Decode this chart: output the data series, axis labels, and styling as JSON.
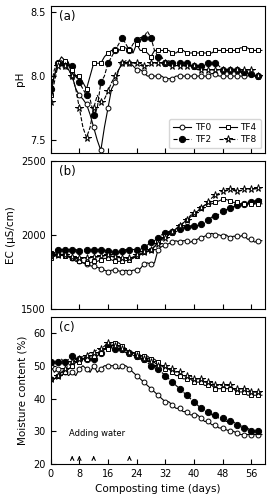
{
  "title_a": "(a)",
  "title_b": "(b)",
  "title_c": "(c)",
  "ylabel_a": "pH",
  "ylabel_b": "EC (μS/cm)",
  "ylabel_c": "Moisture content (%)",
  "xlabel": "Composting time (days)",
  "ylim_a": [
    7.4,
    8.55
  ],
  "ylim_b": [
    1500,
    2500
  ],
  "ylim_c": [
    20,
    65
  ],
  "yticks_a": [
    7.5,
    8.0,
    8.5
  ],
  "yticks_b": [
    1500,
    2000,
    2500
  ],
  "yticks_c": [
    20,
    30,
    40,
    50,
    60
  ],
  "xticks": [
    0,
    8,
    16,
    24,
    32,
    40,
    48,
    56
  ],
  "xlim": [
    0,
    60
  ],
  "water_arrows": [
    6,
    8,
    12,
    22
  ],
  "line_color": "#000000",
  "TF0_ph_x": [
    0,
    1,
    2,
    3,
    4,
    5,
    6,
    7,
    8,
    9,
    10,
    11,
    12,
    13,
    14,
    15,
    16,
    17,
    18,
    19,
    20,
    21,
    22,
    23,
    24,
    25,
    26,
    27,
    28,
    29,
    30,
    31,
    32,
    33,
    34,
    35,
    36,
    37,
    38,
    39,
    40,
    41,
    42,
    43,
    44,
    45,
    46,
    47,
    48,
    49,
    50,
    51,
    52,
    53,
    54,
    55,
    56,
    57,
    58,
    59
  ],
  "TF0_ph": [
    7.9,
    8.0,
    8.1,
    8.1,
    8.08,
    8.05,
    8.0,
    7.9,
    7.85,
    7.82,
    7.78,
    7.7,
    7.6,
    7.5,
    7.42,
    7.6,
    7.75,
    7.9,
    7.95,
    8.05,
    8.1,
    8.1,
    8.1,
    8.08,
    8.05,
    8.05,
    8.03,
    8.0,
    8.0,
    8.0,
    8.0,
    8.0,
    7.98,
    7.98,
    7.98,
    8.0,
    8.0,
    8.0,
    8.0,
    8.0,
    8.0,
    8.0,
    8.0,
    8.0,
    8.0,
    8.02,
    8.02,
    8.0,
    8.0,
    8.0,
    8.0,
    8.0,
    8.0,
    8.0,
    8.0,
    8.0,
    8.02,
    8.0,
    8.0,
    8.0
  ],
  "TF2_ph": [
    7.9,
    8.05,
    8.1,
    8.12,
    8.1,
    8.08,
    8.08,
    8.0,
    7.95,
    7.9,
    7.85,
    7.82,
    7.7,
    7.75,
    7.95,
    8.0,
    8.1,
    8.15,
    8.2,
    8.25,
    8.3,
    8.25,
    8.2,
    8.25,
    8.28,
    8.3,
    8.3,
    8.35,
    8.3,
    8.2,
    8.15,
    8.15,
    8.1,
    8.12,
    8.1,
    8.1,
    8.1,
    8.1,
    8.1,
    8.08,
    8.08,
    8.08,
    8.08,
    8.08,
    8.1,
    8.1,
    8.1,
    8.08,
    8.05,
    8.05,
    8.05,
    8.05,
    8.05,
    8.03,
    8.03,
    8.03,
    8.02,
    8.0,
    8.0,
    8.0
  ],
  "TF4_ph": [
    7.85,
    8.0,
    8.1,
    8.15,
    8.12,
    8.1,
    8.05,
    8.0,
    8.0,
    7.95,
    7.9,
    8.0,
    8.1,
    8.1,
    8.1,
    8.15,
    8.18,
    8.2,
    8.2,
    8.2,
    8.22,
    8.22,
    8.2,
    8.18,
    8.25,
    8.2,
    8.2,
    8.18,
    8.15,
    8.2,
    8.2,
    8.2,
    8.2,
    8.2,
    8.18,
    8.18,
    8.2,
    8.2,
    8.18,
    8.18,
    8.18,
    8.18,
    8.18,
    8.18,
    8.18,
    8.18,
    8.2,
    8.2,
    8.2,
    8.2,
    8.2,
    8.2,
    8.2,
    8.22,
    8.22,
    8.22,
    8.2,
    8.2,
    8.2,
    8.2
  ],
  "TF8_ph": [
    7.8,
    7.95,
    8.08,
    8.1,
    8.08,
    8.05,
    8.0,
    7.9,
    7.75,
    7.6,
    7.52,
    7.6,
    7.75,
    7.85,
    7.8,
    7.82,
    7.88,
    7.95,
    8.0,
    8.05,
    8.1,
    8.12,
    8.1,
    8.1,
    8.1,
    8.1,
    8.08,
    8.08,
    8.1,
    8.1,
    8.1,
    8.1,
    8.1,
    8.1,
    8.08,
    8.08,
    8.08,
    8.08,
    8.08,
    8.08,
    8.08,
    8.05,
    8.05,
    8.05,
    8.05,
    8.05,
    8.05,
    8.05,
    8.05,
    8.05,
    8.05,
    8.05,
    8.05,
    8.05,
    8.05,
    8.05,
    8.05,
    8.0,
    8.0,
    8.0
  ],
  "TF0_ec": [
    1870,
    1880,
    1870,
    1865,
    1870,
    1850,
    1840,
    1820,
    1820,
    1810,
    1800,
    1790,
    1785,
    1780,
    1770,
    1760,
    1750,
    1760,
    1760,
    1755,
    1750,
    1760,
    1750,
    1760,
    1760,
    1770,
    1800,
    1810,
    1800,
    1810,
    1900,
    1920,
    1930,
    1940,
    1950,
    1960,
    1950,
    1960,
    1960,
    1950,
    1960,
    1970,
    1980,
    1990,
    2000,
    2010,
    2000,
    2000,
    1990,
    2000,
    1980,
    1990,
    1990,
    1990,
    2000,
    1970,
    1970,
    1950,
    1960,
    1960
  ],
  "TF2_ec": [
    1870,
    1890,
    1900,
    1900,
    1900,
    1900,
    1900,
    1900,
    1890,
    1900,
    1900,
    1895,
    1900,
    1900,
    1900,
    1895,
    1890,
    1880,
    1880,
    1880,
    1890,
    1900,
    1900,
    1900,
    1900,
    1910,
    1920,
    1930,
    1950,
    1960,
    1980,
    2000,
    2010,
    2020,
    2020,
    2030,
    2040,
    2050,
    2050,
    2060,
    2060,
    2060,
    2070,
    2080,
    2100,
    2120,
    2130,
    2140,
    2160,
    2170,
    2180,
    2190,
    2200,
    2200,
    2210,
    2220,
    2220,
    2230,
    2230,
    2240
  ],
  "TF4_ec": [
    1840,
    1855,
    1860,
    1860,
    1855,
    1850,
    1840,
    1830,
    1820,
    1810,
    1810,
    1810,
    1820,
    1820,
    1830,
    1840,
    1840,
    1830,
    1820,
    1820,
    1820,
    1825,
    1830,
    1840,
    1855,
    1870,
    1880,
    1890,
    1900,
    1920,
    1950,
    1970,
    1990,
    2000,
    2020,
    2040,
    2060,
    2080,
    2100,
    2120,
    2140,
    2160,
    2180,
    2200,
    2210,
    2210,
    2220,
    2230,
    2240,
    2240,
    2230,
    2220,
    2220,
    2210,
    2210,
    2210,
    2210,
    2210,
    2210,
    2210
  ],
  "TF8_ec": [
    1855,
    1860,
    1865,
    1865,
    1860,
    1855,
    1850,
    1840,
    1840,
    1840,
    1840,
    1845,
    1850,
    1850,
    1855,
    1860,
    1860,
    1855,
    1850,
    1840,
    1840,
    1840,
    1840,
    1850,
    1860,
    1870,
    1880,
    1890,
    1900,
    1920,
    1940,
    1960,
    1980,
    2000,
    2020,
    2040,
    2060,
    2080,
    2100,
    2130,
    2150,
    2160,
    2180,
    2200,
    2220,
    2250,
    2270,
    2280,
    2300,
    2310,
    2310,
    2310,
    2300,
    2300,
    2310,
    2310,
    2310,
    2310,
    2320,
    2320
  ],
  "TF0_mc": [
    50,
    48,
    49,
    47,
    48,
    47,
    48,
    47,
    49,
    50,
    49,
    48,
    50,
    48,
    49,
    50,
    50,
    50,
    50,
    49,
    50,
    50,
    49,
    48,
    47,
    46,
    45,
    44,
    43,
    42,
    41,
    40,
    39,
    39,
    38,
    37,
    37,
    36,
    36,
    35,
    35,
    35,
    34,
    33,
    33,
    32,
    32,
    31,
    31,
    30.5,
    30,
    30,
    29.5,
    29,
    29,
    29,
    29,
    29,
    29,
    29
  ],
  "TF2_mc": [
    51,
    51,
    51,
    52,
    51,
    52,
    53,
    52,
    52,
    53,
    52,
    52,
    52,
    53,
    54,
    55,
    56,
    56,
    55,
    55,
    55,
    55,
    54,
    54,
    53,
    52,
    52,
    51,
    50,
    50,
    49,
    48,
    47,
    46,
    45,
    44,
    43,
    42,
    41,
    40,
    39,
    38,
    37,
    36,
    36,
    35,
    35,
    34,
    34,
    33,
    33,
    33,
    32,
    32,
    31,
    31,
    30,
    30,
    30,
    29
  ],
  "TF4_mc": [
    46,
    46,
    47,
    48,
    48,
    49,
    50,
    51,
    51,
    52,
    52,
    53,
    53,
    53,
    54,
    55,
    55,
    56,
    57,
    57,
    56,
    55,
    54,
    54,
    54,
    53,
    53,
    53,
    52,
    52,
    51,
    50,
    49,
    49,
    48,
    47,
    47,
    46,
    46,
    46,
    45,
    45,
    45,
    44,
    44,
    44,
    43,
    43,
    43,
    43,
    43,
    43,
    42,
    42,
    42,
    41,
    41,
    41,
    41,
    41
  ],
  "TF8_mc": [
    46,
    46,
    47,
    48,
    49,
    50,
    51,
    52,
    52,
    53,
    53,
    54,
    54,
    55,
    55,
    56,
    57,
    57,
    56,
    56,
    55,
    55,
    54,
    54,
    53,
    53,
    52,
    52,
    51,
    51,
    50,
    50,
    50,
    49,
    49,
    48,
    48,
    47,
    47,
    47,
    46,
    46,
    46,
    45,
    45,
    45,
    44,
    44,
    44,
    44,
    44,
    43,
    43,
    43,
    43,
    43,
    42,
    42,
    42,
    42
  ],
  "figsize": [
    2.71,
    5.0
  ],
  "dpi": 100
}
